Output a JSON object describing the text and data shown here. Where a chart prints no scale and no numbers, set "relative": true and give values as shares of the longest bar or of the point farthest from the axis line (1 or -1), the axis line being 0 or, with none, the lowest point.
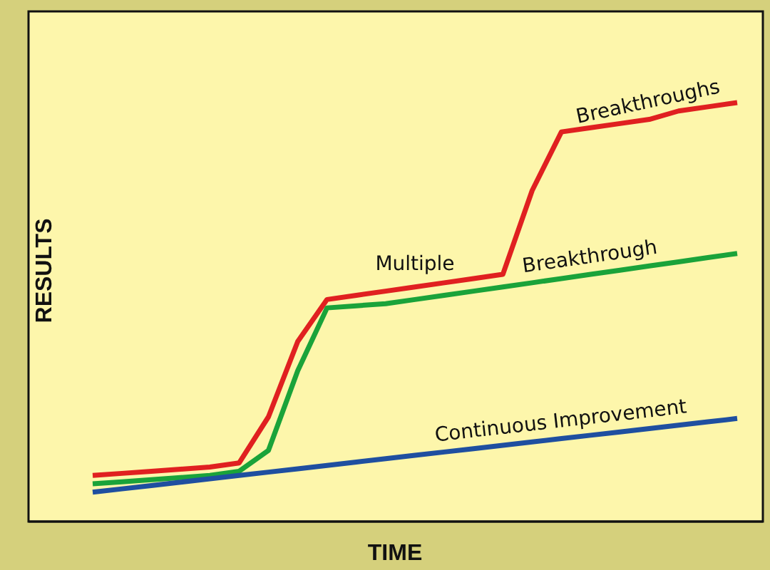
{
  "chart_data": {
    "type": "line",
    "relative": true,
    "xlabel": "TIME",
    "ylabel": "RESULTS",
    "categories": [
      null,
      null,
      null,
      null,
      null,
      null,
      null,
      null,
      null,
      null,
      null,
      null,
      null,
      null,
      null,
      null,
      null,
      null,
      null,
      null,
      null,
      null,
      null
    ],
    "series": [
      {
        "name": "Breakthroughs",
        "color": "#e02020",
        "values": [
          0.11,
          0.115,
          0.12,
          0.125,
          0.13,
          0.14,
          0.25,
          0.43,
          0.53,
          0.54,
          0.55,
          0.56,
          0.57,
          0.58,
          0.59,
          0.79,
          0.93,
          0.94,
          0.95,
          0.96,
          0.98,
          0.99,
          1
        ]
      },
      {
        "name": "Breakthrough",
        "color": "#1aa33a",
        "values": [
          0.09,
          0.095,
          0.1,
          0.105,
          0.11,
          0.12,
          0.17,
          0.36,
          0.51,
          0.515,
          0.52,
          0.53,
          0.54,
          0.55,
          0.56,
          0.57,
          0.58,
          0.59,
          0.6,
          0.61,
          0.62,
          0.63,
          0.64
        ]
      },
      {
        "name": "Continuous Improvement",
        "color": "#1f4fa0",
        "values": [
          0.07,
          0.078,
          0.086,
          0.094,
          0.102,
          0.11,
          0.118,
          0.126,
          0.134,
          0.142,
          0.15,
          0.158,
          0.166,
          0.174,
          0.182,
          0.19,
          0.198,
          0.206,
          0.214,
          0.222,
          0.23,
          0.238,
          0.246
        ]
      }
    ],
    "annotations": [
      "Multiple"
    ],
    "marker": "none",
    "line_style": "solid",
    "grid": false,
    "legend": false
  }
}
